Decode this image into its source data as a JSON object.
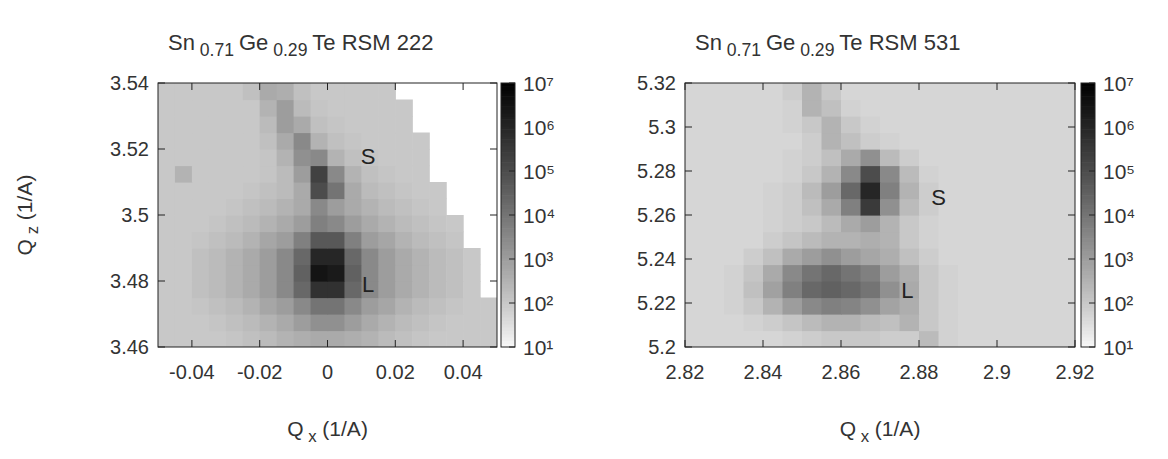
{
  "chart_data": [
    {
      "type": "heatmap",
      "title": "Sn0.71Ge0.29Te RSM 222",
      "x_label": "Qx (1/A)",
      "y_label": "Qz (1/A)",
      "xlim": [
        -0.05,
        0.05
      ],
      "ylim": [
        3.46,
        3.54
      ],
      "xticks": [
        -0.04,
        -0.02,
        0,
        0.02,
        0.04
      ],
      "yticks": [
        3.46,
        3.48,
        3.5,
        3.52,
        3.54
      ],
      "x": [
        -0.0475,
        -0.0425,
        -0.0375,
        -0.0325,
        -0.0275,
        -0.0225,
        -0.0175,
        -0.0125,
        -0.0075,
        -0.0025,
        0.0025,
        0.0075,
        0.0125,
        0.0175,
        0.0225,
        0.0275,
        0.0325,
        0.0375,
        0.0425,
        0.0475
      ],
      "y": [
        3.4625,
        3.4675,
        3.4725,
        3.4775,
        3.4825,
        3.4875,
        3.4925,
        3.4975,
        3.5025,
        3.5075,
        3.5125,
        3.5175,
        3.5225,
        3.5275,
        3.5325,
        3.5375
      ],
      "z": [
        [
          100,
          100,
          100,
          100,
          120,
          150,
          200,
          300,
          400,
          500,
          500,
          400,
          300,
          200,
          150,
          120,
          100,
          100,
          100,
          100
        ],
        [
          100,
          100,
          100,
          120,
          150,
          200,
          300,
          500,
          1000,
          2000,
          2000,
          1000,
          500,
          300,
          200,
          150,
          120,
          100,
          100,
          100
        ],
        [
          100,
          100,
          120,
          150,
          200,
          300,
          600,
          1000,
          3000,
          10000,
          10000,
          3000,
          1000,
          600,
          300,
          200,
          150,
          120,
          100,
          100
        ],
        [
          100,
          100,
          150,
          200,
          300,
          500,
          1000,
          3000,
          20000,
          500000,
          500000,
          20000,
          3000,
          1000,
          500,
          300,
          200,
          150,
          100,
          null
        ],
        [
          100,
          100,
          150,
          200,
          300,
          500,
          1000,
          3000,
          30000,
          3000000,
          2000000,
          30000,
          3000,
          1000,
          500,
          300,
          200,
          150,
          100,
          null
        ],
        [
          100,
          100,
          150,
          200,
          300,
          500,
          1000,
          3000,
          20000,
          1000000,
          1000000,
          20000,
          3000,
          1000,
          500,
          300,
          200,
          150,
          100,
          null
        ],
        [
          100,
          100,
          120,
          150,
          200,
          300,
          600,
          1000,
          5000,
          50000,
          50000,
          5000,
          1000,
          600,
          300,
          200,
          150,
          120,
          null,
          null
        ],
        [
          100,
          100,
          100,
          120,
          150,
          200,
          300,
          500,
          1000,
          5000,
          3000,
          1000,
          500,
          300,
          200,
          150,
          120,
          100,
          null,
          null
        ],
        [
          100,
          100,
          100,
          100,
          120,
          150,
          200,
          300,
          500,
          3000,
          1000,
          500,
          300,
          200,
          150,
          120,
          100,
          null,
          null,
          null
        ],
        [
          100,
          100,
          100,
          100,
          100,
          120,
          150,
          200,
          500,
          100000,
          10000,
          500,
          200,
          150,
          120,
          100,
          100,
          null,
          null,
          null
        ],
        [
          100,
          300,
          100,
          100,
          100,
          100,
          120,
          200,
          1000,
          200000,
          3000,
          300,
          150,
          120,
          100,
          100,
          null,
          null,
          null,
          null
        ],
        [
          100,
          100,
          100,
          100,
          100,
          100,
          120,
          300,
          2000,
          3000,
          300,
          150,
          120,
          100,
          100,
          100,
          null,
          null,
          null,
          null
        ],
        [
          100,
          100,
          100,
          100,
          100,
          100,
          150,
          500,
          3000,
          300,
          150,
          120,
          100,
          100,
          100,
          100,
          null,
          null,
          null,
          null
        ],
        [
          100,
          100,
          100,
          100,
          100,
          100,
          200,
          1000,
          500,
          150,
          120,
          100,
          100,
          100,
          100,
          null,
          null,
          null,
          null,
          null
        ],
        [
          100,
          100,
          100,
          100,
          100,
          100,
          300,
          1000,
          200,
          120,
          100,
          100,
          100,
          100,
          100,
          null,
          null,
          null,
          null,
          null
        ],
        [
          100,
          100,
          100,
          100,
          100,
          150,
          500,
          400,
          150,
          100,
          100,
          100,
          100,
          100,
          null,
          null,
          null,
          null,
          null,
          null
        ]
      ],
      "colorbar": {
        "log": true,
        "range": [
          10,
          10000000
        ],
        "ticks": [
          {
            "value": 10,
            "label": "10¹"
          },
          {
            "value": 100,
            "label": "10²"
          },
          {
            "value": 1000,
            "label": "10³"
          },
          {
            "value": 10000,
            "label": "10⁴"
          },
          {
            "value": 100000,
            "label": "10⁵"
          },
          {
            "value": 1000000,
            "label": "10⁶"
          },
          {
            "value": 10000000,
            "label": "10⁷"
          }
        ]
      },
      "annotations": [
        {
          "text": "S",
          "x": 0.012,
          "y": 3.518
        },
        {
          "text": "L",
          "x": 0.012,
          "y": 3.479
        }
      ]
    },
    {
      "type": "heatmap",
      "title": "Sn0.71Ge0.29Te RSM 531",
      "x_label": "Qx (1/A)",
      "xlim": [
        2.82,
        2.92
      ],
      "ylim": [
        5.2,
        5.32
      ],
      "xticks": [
        2.82,
        2.84,
        2.86,
        2.88,
        2.9,
        2.92
      ],
      "yticks": [
        5.2,
        5.22,
        5.24,
        5.26,
        5.28,
        5.3,
        5.32
      ],
      "x": [
        2.8225,
        2.8275,
        2.8325,
        2.8375,
        2.8425,
        2.8475,
        2.8525,
        2.8575,
        2.8625,
        2.8675,
        2.8725,
        2.8775,
        2.8825,
        2.8875,
        2.8925,
        2.8975,
        2.9025,
        2.9075,
        2.9125,
        2.9175
      ],
      "y": [
        5.20375,
        5.21125,
        5.21875,
        5.22625,
        5.23375,
        5.24125,
        5.24875,
        5.25625,
        5.26375,
        5.27125,
        5.27875,
        5.28625,
        5.29375,
        5.30125,
        5.30875,
        5.31625
      ],
      "z": [
        [
          50,
          50,
          50,
          50,
          50,
          60,
          80,
          100,
          100,
          100,
          80,
          80,
          200,
          60,
          50,
          50,
          50,
          50,
          50,
          50
        ],
        [
          50,
          50,
          50,
          60,
          80,
          120,
          200,
          300,
          300,
          200,
          150,
          300,
          100,
          60,
          50,
          50,
          50,
          50,
          50,
          50
        ],
        [
          50,
          50,
          60,
          100,
          300,
          1000,
          3000,
          5000,
          4000,
          2000,
          700,
          400,
          100,
          60,
          50,
          50,
          50,
          50,
          50,
          50
        ],
        [
          50,
          50,
          60,
          150,
          800,
          5000,
          20000,
          30000,
          20000,
          10000,
          2000,
          500,
          100,
          60,
          50,
          50,
          50,
          50,
          50,
          50
        ],
        [
          50,
          50,
          60,
          120,
          500,
          3000,
          10000,
          20000,
          10000,
          5000,
          1000,
          400,
          100,
          60,
          50,
          50,
          50,
          50,
          50,
          50
        ],
        [
          50,
          50,
          50,
          80,
          150,
          500,
          1000,
          2000,
          1000,
          600,
          400,
          150,
          80,
          50,
          50,
          50,
          50,
          50,
          50,
          50
        ],
        [
          50,
          50,
          50,
          50,
          80,
          120,
          200,
          300,
          300,
          400,
          300,
          100,
          60,
          50,
          50,
          50,
          50,
          50,
          50,
          50
        ],
        [
          50,
          50,
          50,
          50,
          60,
          80,
          100,
          200,
          500,
          1000,
          300,
          100,
          60,
          50,
          50,
          50,
          50,
          50,
          50,
          50
        ],
        [
          50,
          50,
          50,
          50,
          60,
          80,
          150,
          500,
          5000,
          300000,
          2000,
          200,
          80,
          50,
          50,
          50,
          50,
          50,
          50,
          50
        ],
        [
          50,
          50,
          50,
          50,
          60,
          80,
          200,
          1000,
          20000,
          1000000,
          5000,
          300,
          80,
          50,
          50,
          50,
          50,
          50,
          50,
          50
        ],
        [
          50,
          50,
          50,
          50,
          50,
          60,
          100,
          300,
          3000,
          100000,
          3000,
          200,
          60,
          50,
          50,
          50,
          50,
          50,
          50,
          50
        ],
        [
          50,
          50,
          50,
          50,
          50,
          60,
          80,
          150,
          500,
          2000,
          200,
          80,
          50,
          50,
          50,
          50,
          50,
          50,
          50,
          50
        ],
        [
          50,
          50,
          50,
          50,
          50,
          50,
          80,
          300,
          150,
          80,
          60,
          50,
          50,
          50,
          50,
          50,
          50,
          50,
          50,
          50
        ],
        [
          50,
          50,
          50,
          50,
          50,
          60,
          100,
          300,
          100,
          60,
          50,
          50,
          50,
          50,
          50,
          50,
          50,
          50,
          50,
          50
        ],
        [
          50,
          50,
          50,
          50,
          50,
          60,
          300,
          150,
          60,
          50,
          50,
          50,
          50,
          50,
          50,
          50,
          50,
          50,
          50,
          50
        ],
        [
          50,
          50,
          50,
          50,
          50,
          80,
          300,
          100,
          50,
          50,
          50,
          50,
          50,
          50,
          50,
          50,
          50,
          50,
          50,
          50
        ]
      ],
      "colorbar": {
        "log": true,
        "range": [
          10,
          10000000
        ],
        "ticks": [
          {
            "value": 10,
            "label": "10¹"
          },
          {
            "value": 100,
            "label": "10²"
          },
          {
            "value": 1000,
            "label": "10³"
          },
          {
            "value": 10000,
            "label": "10⁴"
          },
          {
            "value": 100000,
            "label": "10⁵"
          },
          {
            "value": 1000000,
            "label": "10⁶"
          },
          {
            "value": 10000000,
            "label": "10⁷"
          }
        ]
      },
      "annotations": [
        {
          "text": "S",
          "x": 2.885,
          "y": 5.268
        },
        {
          "text": "L",
          "x": 2.877,
          "y": 5.226
        }
      ]
    }
  ]
}
